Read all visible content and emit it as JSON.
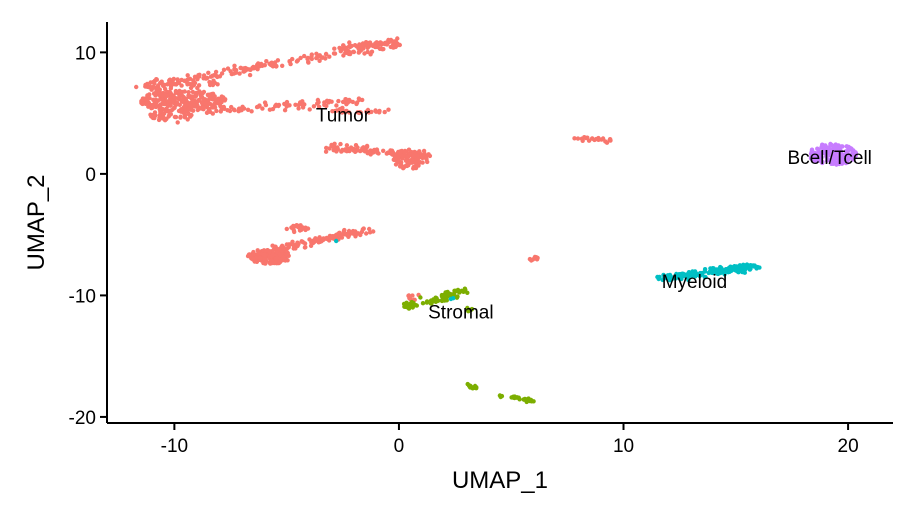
{
  "chart_data": {
    "type": "scatter",
    "title": "",
    "xlabel": "UMAP_1",
    "ylabel": "UMAP_2",
    "xlim": [
      -13,
      22
    ],
    "ylim": [
      -20.5,
      12.5
    ],
    "x_ticks": [
      -10,
      0,
      10,
      20
    ],
    "y_ticks": [
      10,
      0,
      -10,
      -20
    ],
    "grid": false,
    "legend": "none",
    "series": [
      {
        "name": "Tumor",
        "color": "#F8766D",
        "label_pos": [
          -3.7,
          4.8
        ],
        "regions": [
          {
            "x0": -11.5,
            "y0": 7.2,
            "x1": 0,
            "y1": 10.7,
            "spread": 0.3,
            "n": 170
          },
          {
            "x0": -11.4,
            "y0": 7.1,
            "x1": -8,
            "y1": 7.4,
            "spread": 0.25,
            "n": 40
          },
          {
            "x0": -2.5,
            "y0": 10.4,
            "x1": 0,
            "y1": 10.8,
            "spread": 0.25,
            "n": 70
          },
          {
            "cx": -9.6,
            "cy": 6.0,
            "rx": 1.9,
            "ry": 0.9,
            "n": 260
          },
          {
            "cx": -10.2,
            "cy": 4.7,
            "rx": 1.0,
            "ry": 0.5,
            "n": 40
          },
          {
            "x0": -8.5,
            "y0": 5.2,
            "x1": -1.5,
            "y1": 6.0,
            "spread": 0.25,
            "n": 90
          },
          {
            "x0": -3,
            "y0": 5.2,
            "x1": -0.5,
            "y1": 5.1,
            "spread": 0.15,
            "n": 30
          },
          {
            "x0": -3,
            "y0": 2.2,
            "x1": 1.2,
            "y1": 1.5,
            "spread": 0.3,
            "n": 110
          },
          {
            "cx": 0.5,
            "cy": 1.2,
            "rx": 0.8,
            "ry": 0.8,
            "n": 90
          },
          {
            "cx": -5.8,
            "cy": -6.8,
            "rx": 1.0,
            "ry": 0.6,
            "n": 180
          },
          {
            "x0": -5.5,
            "y0": -6.2,
            "x1": -1.3,
            "y1": -4.6,
            "spread": 0.3,
            "n": 110
          },
          {
            "cx": -4.5,
            "cy": -4.5,
            "rx": 0.5,
            "ry": 0.3,
            "n": 20
          },
          {
            "x0": 7.8,
            "y0": 3.0,
            "x1": 9.6,
            "y1": 2.7,
            "spread": 0.12,
            "n": 22
          },
          {
            "cx": 6.0,
            "cy": -7.0,
            "rx": 0.2,
            "ry": 0.25,
            "n": 10
          },
          {
            "cx": 0.7,
            "cy": -10.1,
            "rx": 0.3,
            "ry": 0.3,
            "n": 8
          }
        ]
      },
      {
        "name": "Stromal",
        "color": "#7CAE00",
        "label_pos": [
          1.3,
          -11.4
        ],
        "regions": [
          {
            "x0": 1.3,
            "y0": -10.5,
            "x1": 3.0,
            "y1": -9.6,
            "spread": 0.3,
            "n": 60
          },
          {
            "cx": 0.5,
            "cy": -10.8,
            "rx": 0.3,
            "ry": 0.3,
            "n": 25
          },
          {
            "cx": 3.1,
            "cy": -11.2,
            "rx": 0.2,
            "ry": 0.2,
            "n": 6
          },
          {
            "x0": 3.0,
            "y0": -17.4,
            "x1": 3.5,
            "y1": -17.6,
            "spread": 0.1,
            "n": 14
          },
          {
            "x0": 5.0,
            "y0": -18.4,
            "x1": 6.0,
            "y1": -18.7,
            "spread": 0.12,
            "n": 26
          },
          {
            "cx": 4.5,
            "cy": -18.3,
            "rx": 0.1,
            "ry": 0.1,
            "n": 3
          }
        ]
      },
      {
        "name": "Myeloid",
        "color": "#00BFC4",
        "label_pos": [
          11.7,
          -8.9
        ],
        "regions": [
          {
            "x0": 11.8,
            "y0": -8.6,
            "x1": 15.8,
            "y1": -7.6,
            "spread": 0.25,
            "n": 170
          },
          {
            "cx": 2.4,
            "cy": -10.3,
            "rx": 0.1,
            "ry": 0.1,
            "n": 2
          },
          {
            "cx": -2.8,
            "cy": -5.5,
            "rx": 0.05,
            "ry": 0.05,
            "n": 1
          }
        ]
      },
      {
        "name": "Bcell/Tcell",
        "color": "#C77CFF",
        "label_pos": [
          17.3,
          1.3
        ],
        "regions": [
          {
            "cx": 19.3,
            "cy": 1.6,
            "rx": 1.1,
            "ry": 0.9,
            "n": 160
          }
        ]
      }
    ]
  }
}
